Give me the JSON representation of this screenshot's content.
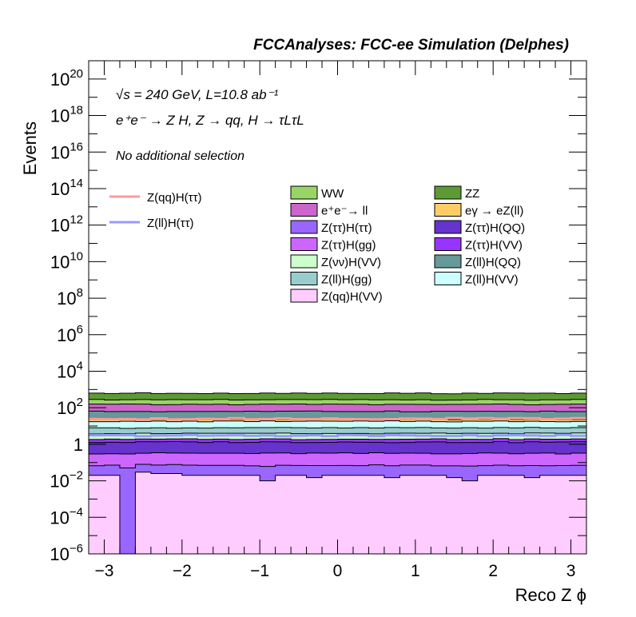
{
  "chart_data": {
    "type": "area",
    "title": "FCCAnalyses: FCC-ee Simulation (Delphes)",
    "xlabel": "Reco Z ϕ",
    "ylabel": "Events",
    "xlim": [
      -3.2,
      3.2
    ],
    "ylim": [
      1e-06,
      1e+21
    ],
    "yscale": "log",
    "legend_placement": "top-right",
    "x_ticks": [
      "−3",
      "−2",
      "−1",
      "0",
      "1",
      "2",
      "3"
    ],
    "x_tick_values": [
      -3,
      -2,
      -1,
      0,
      1,
      2,
      3
    ],
    "y_ticks": [
      {
        "value": 1e-06,
        "base": "10",
        "exp": "−6"
      },
      {
        "value": 0.0001,
        "base": "10",
        "exp": "−4"
      },
      {
        "value": 0.01,
        "base": "10",
        "exp": "−2"
      },
      {
        "value": 1,
        "base": "1",
        "exp": ""
      },
      {
        "value": 100.0,
        "base": "10",
        "exp": "2"
      },
      {
        "value": 10000.0,
        "base": "10",
        "exp": "4"
      },
      {
        "value": 1000000.0,
        "base": "10",
        "exp": "6"
      },
      {
        "value": 100000000.0,
        "base": "10",
        "exp": "8"
      },
      {
        "value": 10000000000.0,
        "base": "10",
        "exp": "10"
      },
      {
        "value": 1000000000000.0,
        "base": "10",
        "exp": "12"
      },
      {
        "value": 100000000000000.0,
        "base": "10",
        "exp": "14"
      },
      {
        "value": 1e+16,
        "base": "10",
        "exp": "16"
      },
      {
        "value": 1e+18,
        "base": "10",
        "exp": "18"
      },
      {
        "value": 1e+20,
        "base": "10",
        "exp": "20"
      }
    ],
    "annotations": {
      "energy": "√s = 240 GeV, L=10.8 ab⁻¹",
      "process": "e⁺e⁻ → Z H, Z → qq, H → τLτL",
      "selection": "No additional selection"
    },
    "stack_order": [
      "Z(qq)H(VV)",
      "Z(ττ)H(ττ)",
      "Z(ττ)H(gg)",
      "Z(ττ)H(QQ)",
      "Z(ττ)H(VV)",
      "Z(νν)H(VV)",
      "Z(ll)H(gg)",
      "Z(ll)H(VV)",
      "eγ → eZ(ll)",
      "Z(ll)H(QQ)",
      "e⁺e⁻→ ll",
      "WW",
      "ZZ"
    ],
    "series": [
      {
        "name": "WW",
        "type": "stack",
        "color": "#99d466",
        "level": 120
      },
      {
        "name": "ZZ",
        "type": "stack",
        "color": "#5e9a33",
        "level": 350
      },
      {
        "name": "e⁺e⁻→ ll",
        "type": "stack",
        "color": "#cc66cc",
        "level": 90
      },
      {
        "name": "eγ → eZ(ll)",
        "type": "stack",
        "color": "#ffcc66",
        "level": 5
      },
      {
        "name": "Z(ττ)H(ττ)",
        "type": "stack",
        "color": "#9966ff",
        "level": 0.05
      },
      {
        "name": "Z(ττ)H(QQ)",
        "type": "stack",
        "color": "#6633cc",
        "level": 1.0
      },
      {
        "name": "Z(ττ)H(gg)",
        "type": "stack",
        "color": "#cc66ff",
        "level": 0.25
      },
      {
        "name": "Z(ττ)H(VV)",
        "type": "stack",
        "color": "#9933ff",
        "level": 0.6
      },
      {
        "name": "Z(νν)H(VV)",
        "type": "stack",
        "color": "#ccffcc",
        "level": 2
      },
      {
        "name": "Z(ll)H(QQ)",
        "type": "stack",
        "color": "#669999",
        "level": 40
      },
      {
        "name": "Z(ll)H(gg)",
        "type": "stack",
        "color": "#99cccc",
        "level": 4
      },
      {
        "name": "Z(ll)H(VV)",
        "type": "stack",
        "color": "#ccffff",
        "level": 10
      },
      {
        "name": "Z(qq)H(VV)",
        "type": "stack",
        "color": "#ffccff",
        "level": 0.02
      },
      {
        "name": "Z(qq)H(ττ)",
        "type": "line",
        "color": "#ff9999",
        "level": 25
      },
      {
        "name": "Z(ll)H(ττ)",
        "type": "line",
        "color": "#9999ff",
        "level": 3
      }
    ],
    "stack_totals": {
      "x_bins": [
        -3.2,
        -3.0,
        -2.8,
        -2.6,
        -2.4,
        -2.2,
        -2.0,
        -1.8,
        -1.6,
        -1.4,
        -1.2,
        -1.0,
        -0.8,
        -0.6,
        -0.4,
        -0.2,
        0.0,
        0.2,
        0.4,
        0.6,
        0.8,
        1.0,
        1.2,
        1.4,
        1.6,
        1.8,
        2.0,
        2.2,
        2.4,
        2.6,
        2.8,
        3.0,
        3.2
      ],
      "qqhvv_bottom": [
        0.02,
        0.02,
        1e-07,
        0.03,
        0.025,
        0.025,
        0.02,
        0.02,
        0.02,
        0.02,
        0.02,
        0.01,
        0.02,
        0.02,
        0.015,
        0.02,
        0.02,
        0.02,
        0.02,
        0.015,
        0.02,
        0.02,
        0.02,
        0.015,
        0.01,
        0.02,
        0.02,
        0.02,
        0.015,
        0.02,
        0.02,
        0.02
      ]
    }
  }
}
